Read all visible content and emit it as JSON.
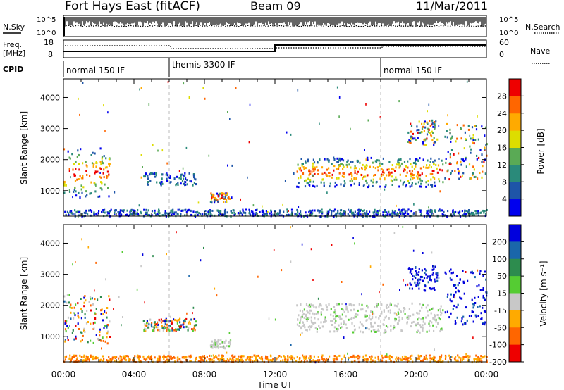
{
  "header": {
    "title": "Fort Hays East (fitACF)",
    "beam": "Beam 09",
    "date": "11/Mar/2011"
  },
  "top_panels": {
    "nsky_label": "N.Sky",
    "nsky_ticks": [
      "10^5",
      "10^0"
    ],
    "nsearch_label": "N.Search",
    "nsearch_ticks": [
      "10^5",
      "10^0"
    ],
    "freq_label": "Freq.",
    "freq_unit": "[MHz]",
    "freq_ticks": [
      "18",
      "8"
    ],
    "nave_label": "Nave",
    "nave_ticks": [
      "60",
      "0"
    ],
    "cpid_label": "CPID",
    "cpid_segments": [
      {
        "label": "normal 150 IF",
        "start_hour": 0
      },
      {
        "label": "themis 3300 IF",
        "start_hour": 6
      },
      {
        "label": "normal 150 IF",
        "start_hour": 18
      }
    ]
  },
  "chart_data": [
    {
      "type": "heatmap",
      "title": "",
      "ylabel": "Slant Range [km]",
      "xlabel": "",
      "x_range_hours": [
        0,
        24
      ],
      "ylim": [
        180,
        4600
      ],
      "yticks": [
        "1000",
        "2000",
        "3000",
        "4000"
      ],
      "xticks": [
        "00:00",
        "04:00",
        "08:00",
        "12:00",
        "16:00",
        "20:00",
        "00:00"
      ],
      "colorbar": {
        "label": "Power [dB]",
        "ticks": [
          "4",
          "8",
          "12",
          "16",
          "20",
          "24",
          "28"
        ],
        "colors": [
          "#0000ee",
          "#1e55a8",
          "#2a8a7a",
          "#5aaa55",
          "#dddd00",
          "#ffaa00",
          "#ff6600",
          "#ee0000"
        ]
      },
      "echo_regions": [
        {
          "t0": 0.0,
          "t1": 2.6,
          "r0": 800,
          "r1": 2400,
          "level": "high"
        },
        {
          "t0": 13.2,
          "t1": 21.5,
          "r0": 1150,
          "r1": 2100,
          "level": "high"
        },
        {
          "t0": 21.6,
          "t1": 24.0,
          "r0": 1400,
          "r1": 3200,
          "level": "mixed"
        },
        {
          "t0": 19.5,
          "t1": 21.2,
          "r0": 2500,
          "r1": 3300,
          "level": "mixed"
        },
        {
          "t0": 8.3,
          "t1": 9.5,
          "r0": 650,
          "r1": 950,
          "level": "mixed"
        },
        {
          "t0": 4.5,
          "t1": 7.5,
          "r0": 1200,
          "r1": 1600,
          "level": "low"
        },
        {
          "t0": 0.0,
          "t1": 24.0,
          "r0": 200,
          "r1": 420,
          "level": "low"
        }
      ]
    },
    {
      "type": "heatmap",
      "title": "",
      "ylabel": "Slant Range [km]",
      "xlabel": "Time UT",
      "x_range_hours": [
        0,
        24
      ],
      "ylim": [
        180,
        4600
      ],
      "yticks": [
        "1000",
        "2000",
        "3000",
        "4000"
      ],
      "xticks": [
        "00:00",
        "04:00",
        "08:00",
        "12:00",
        "16:00",
        "20:00",
        "00:00"
      ],
      "colorbar": {
        "label": "Velocity [m s⁻¹]",
        "ticks": [
          "200",
          "100",
          "50",
          "15",
          "-15",
          "-50",
          "-100",
          "-200"
        ],
        "colors": [
          "#0000dd",
          "#1a66aa",
          "#2d8c4e",
          "#55cc33",
          "#c8c8c8",
          "#ffaa00",
          "#ff6600",
          "#ee0000"
        ]
      },
      "echo_regions": [
        {
          "t0": 0.0,
          "t1": 2.6,
          "r0": 800,
          "r1": 2400,
          "level": "mixed"
        },
        {
          "t0": 13.2,
          "t1": 21.5,
          "r0": 1150,
          "r1": 2100,
          "level": "ground"
        },
        {
          "t0": 21.6,
          "t1": 24.0,
          "r0": 1400,
          "r1": 3200,
          "level": "toward"
        },
        {
          "t0": 19.5,
          "t1": 21.2,
          "r0": 2500,
          "r1": 3300,
          "level": "toward"
        },
        {
          "t0": 8.3,
          "t1": 9.5,
          "r0": 650,
          "r1": 950,
          "level": "ground"
        },
        {
          "t0": 4.5,
          "t1": 7.5,
          "r0": 1200,
          "r1": 1600,
          "level": "mixed"
        },
        {
          "t0": 0.0,
          "t1": 24.0,
          "r0": 200,
          "r1": 420,
          "level": "away"
        }
      ]
    }
  ]
}
